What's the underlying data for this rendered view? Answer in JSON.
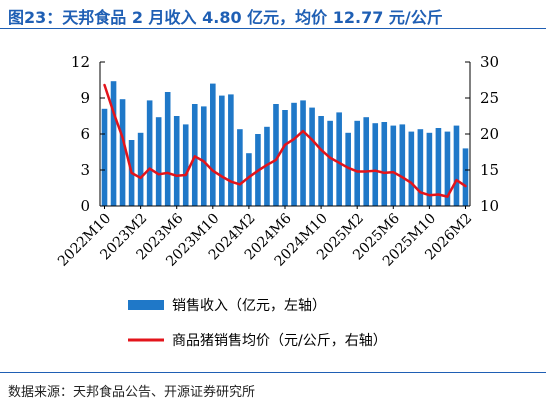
{
  "figure": {
    "title": "图23：天邦食品 2 月收入 4.80 亿元，均价 12.77 元/公斤",
    "source": "数据来源：天邦食品公告、开源证券研究所"
  },
  "colors": {
    "bar": "#1f78c8",
    "line": "#e3141b",
    "title": "#1f5fb4",
    "axis": "#000000"
  },
  "chart_data": {
    "type": "bar",
    "x": [
      "2022M10",
      "2022M11",
      "2022M12",
      "2023M1",
      "2023M2",
      "2023M3",
      "2023M4",
      "2023M5",
      "2023M6",
      "2023M7",
      "2023M8",
      "2023M9",
      "2023M10",
      "2023M11",
      "2023M12",
      "2024M1",
      "2024M2",
      "2024M3",
      "2024M4",
      "2024M5",
      "2024M6",
      "2024M7",
      "2024M8",
      "2024M9",
      "2024M10",
      "2024M11",
      "2024M12",
      "2025M1",
      "2025M2",
      "2025M3",
      "2025M4",
      "2025M5",
      "2025M6",
      "2025M7",
      "2025M8",
      "2025M9",
      "2025M10",
      "2025M11",
      "2025M12",
      "2026M1",
      "2026M2"
    ],
    "x_tick_labels": [
      "2022M10",
      "2023M2",
      "2023M6",
      "2023M10",
      "2024M2",
      "2024M6",
      "2024M10",
      "2025M2",
      "2025M6",
      "2025M10",
      "2026M2"
    ],
    "series": [
      {
        "name": "销售收入（亿元，左轴）",
        "type": "bar",
        "axis": "left",
        "values": [
          8.1,
          10.4,
          8.9,
          5.5,
          6.1,
          8.8,
          7.4,
          9.5,
          7.5,
          6.8,
          8.5,
          8.3,
          10.2,
          9.2,
          9.3,
          6.4,
          4.4,
          6.0,
          6.6,
          8.5,
          8.0,
          8.6,
          8.8,
          8.2,
          7.5,
          7.1,
          7.8,
          6.1,
          7.1,
          7.4,
          6.9,
          7.0,
          6.7,
          6.8,
          6.2,
          6.4,
          6.1,
          6.5,
          6.2,
          6.7,
          4.8
        ]
      },
      {
        "name": "商品猪销售均价（元/公斤，右轴）",
        "type": "line",
        "axis": "right",
        "values": [
          26.8,
          23.0,
          19.5,
          14.6,
          13.9,
          15.2,
          14.4,
          14.6,
          14.2,
          14.3,
          16.9,
          16.2,
          14.9,
          14.1,
          13.4,
          13.0,
          14.0,
          14.9,
          15.7,
          16.4,
          18.5,
          19.3,
          20.4,
          19.2,
          17.8,
          16.7,
          16.0,
          15.3,
          14.8,
          14.8,
          14.9,
          14.6,
          14.7,
          14.0,
          13.2,
          11.9,
          11.5,
          11.6,
          11.3,
          13.6,
          12.77
        ]
      }
    ],
    "y_left": {
      "lim": [
        0,
        12
      ],
      "ticks": [
        0,
        3,
        6,
        9,
        12
      ]
    },
    "y_right": {
      "lim": [
        10,
        30
      ],
      "ticks": [
        10,
        15,
        20,
        25,
        30
      ]
    },
    "grid": false,
    "legend_position": "bottom"
  }
}
